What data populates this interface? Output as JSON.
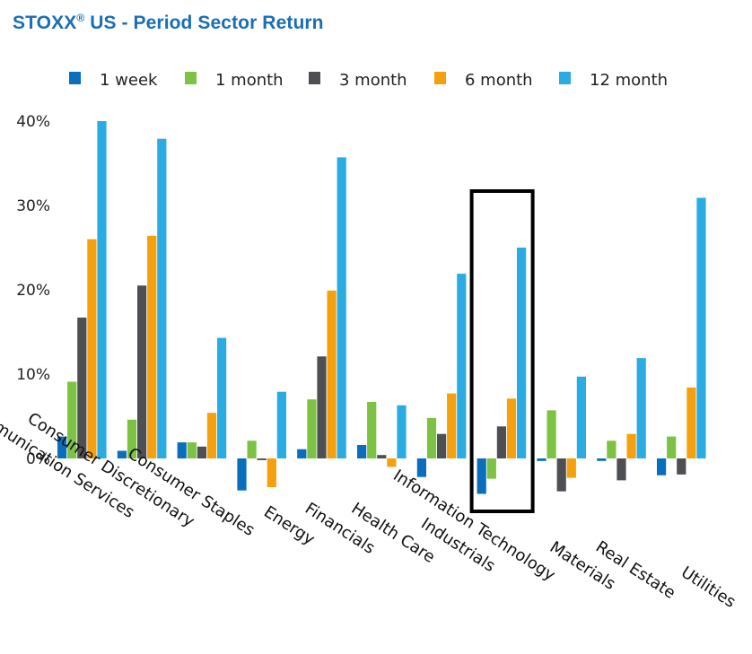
{
  "title_main": "STOXX",
  "title_reg": "®",
  "title_rest": " US - Period Sector Return",
  "chart_data": {
    "type": "bar",
    "title": "STOXX® US - Period Sector Return",
    "xlabel": "",
    "ylabel": "",
    "ylim": [
      -6,
      40
    ],
    "yticks": [
      0,
      10,
      20,
      30,
      40
    ],
    "ytick_labels": [
      "0%",
      "10%",
      "20%",
      "30%",
      "40%"
    ],
    "grid": false,
    "legend_position": "top",
    "categories": [
      "Communication Services",
      "Consumer Discretionary",
      "Consumer Staples",
      "Energy",
      "Financials",
      "Health Care",
      "Industrials",
      "Information Technology",
      "Materials",
      "Real Estate",
      "Utilities"
    ],
    "series": [
      {
        "name": "1 week",
        "color": "#0a6ebd",
        "values": [
          2.6,
          0.9,
          1.9,
          -3.8,
          1.1,
          1.6,
          -2.2,
          -4.2,
          -0.3,
          -0.3,
          -2.0
        ]
      },
      {
        "name": "1 month",
        "color": "#7dc242",
        "values": [
          9.1,
          4.6,
          1.9,
          2.1,
          7.0,
          6.7,
          4.8,
          -2.4,
          5.7,
          2.1,
          2.6
        ]
      },
      {
        "name": "3 month",
        "color": "#4d4f53",
        "values": [
          16.7,
          20.5,
          1.4,
          -0.2,
          12.1,
          0.4,
          2.9,
          3.8,
          -3.9,
          -2.6,
          -1.9
        ]
      },
      {
        "name": "6 month",
        "color": "#f5a00f",
        "values": [
          26.0,
          26.4,
          5.4,
          -3.4,
          19.9,
          -1.0,
          7.7,
          7.1,
          -2.3,
          2.9,
          8.4
        ]
      },
      {
        "name": "12 month",
        "color": "#2aace2",
        "values": [
          40.0,
          37.9,
          14.3,
          7.9,
          35.7,
          6.3,
          21.9,
          25.0,
          9.7,
          11.9,
          30.9
        ]
      }
    ],
    "highlight": {
      "category": "Information Technology",
      "style": "black-box"
    }
  }
}
